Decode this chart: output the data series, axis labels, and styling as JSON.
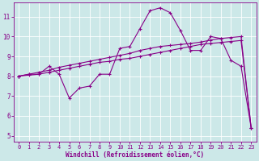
{
  "xlabel": "Windchill (Refroidissement éolien,°C)",
  "background_color": "#cce8e8",
  "grid_color": "#ffffff",
  "line_color": "#880088",
  "x_data": [
    0,
    1,
    2,
    3,
    4,
    5,
    6,
    7,
    8,
    9,
    10,
    11,
    12,
    13,
    14,
    15,
    16,
    17,
    18,
    19,
    20,
    21,
    22,
    23
  ],
  "series1": [
    8.0,
    8.1,
    8.1,
    8.5,
    8.1,
    6.9,
    7.4,
    7.5,
    8.1,
    8.1,
    9.4,
    9.5,
    10.4,
    11.3,
    11.45,
    11.2,
    10.3,
    9.3,
    9.3,
    10.0,
    9.9,
    8.8,
    8.5,
    5.4
  ],
  "series2": [
    8.0,
    8.05,
    8.1,
    8.2,
    8.3,
    8.4,
    8.5,
    8.6,
    8.7,
    8.75,
    8.85,
    8.9,
    9.0,
    9.1,
    9.2,
    9.3,
    9.4,
    9.5,
    9.6,
    9.65,
    9.7,
    9.75,
    9.8,
    5.4
  ],
  "series3": [
    8.0,
    8.1,
    8.2,
    8.3,
    8.45,
    8.55,
    8.65,
    8.75,
    8.85,
    8.95,
    9.05,
    9.15,
    9.3,
    9.4,
    9.5,
    9.55,
    9.6,
    9.65,
    9.72,
    9.82,
    9.9,
    9.95,
    10.0,
    5.4
  ],
  "ylim_bottom": 4.7,
  "ylim_top": 11.7,
  "xlim_left": -0.5,
  "xlim_right": 23.5,
  "yticks": [
    5,
    6,
    7,
    8,
    9,
    10,
    11
  ],
  "xticks": [
    0,
    1,
    2,
    3,
    4,
    5,
    6,
    7,
    8,
    9,
    10,
    11,
    12,
    13,
    14,
    15,
    16,
    17,
    18,
    19,
    20,
    21,
    22,
    23
  ],
  "tick_fontsize": 5.0,
  "xlabel_fontsize": 5.5,
  "marker_size": 3.0,
  "linewidth": 0.8
}
